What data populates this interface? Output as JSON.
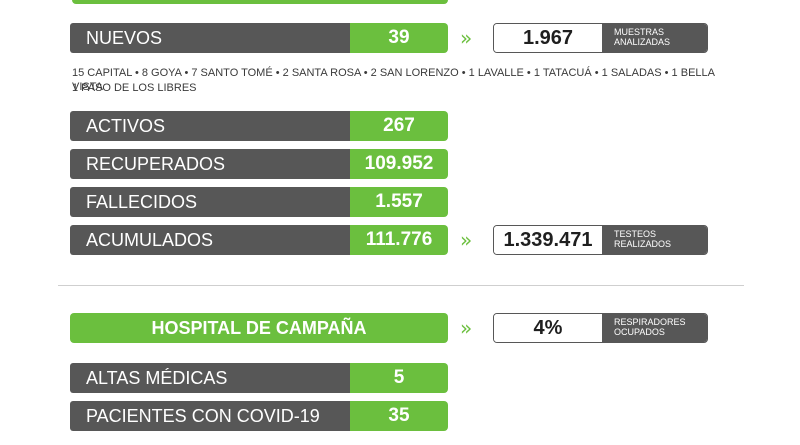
{
  "summary": {
    "nuevos": {
      "label": "NUEVOS",
      "value": "39"
    },
    "muestras": {
      "value": "1.967",
      "caption_line1": "MUESTRAS",
      "caption_line2": "ANALIZADAS"
    },
    "detail_line1": "15 CAPITAL • 8 GOYA • 7 SANTO TOMÉ • 2 SANTA ROSA • 2 SAN LORENZO • 1 LAVALLE • 1 TATACUÁ • 1 SALADAS • 1 BELLA VISTA",
    "detail_line2": "1 PASO DE LOS LIBRES",
    "activos": {
      "label": "ACTIVOS",
      "value": "267"
    },
    "recuperados": {
      "label": "RECUPERADOS",
      "value": "109.952"
    },
    "fallecidos": {
      "label": "FALLECIDOS",
      "value": "1.557"
    },
    "acumulados": {
      "label": "ACUMULADOS",
      "value": "111.776"
    },
    "testeos": {
      "value": "1.339.471",
      "caption_line1": "TESTEOS",
      "caption_line2": "REALIZADOS"
    }
  },
  "hospital": {
    "title": "HOSPITAL DE CAMPAÑA",
    "respiradores": {
      "value": "4%",
      "caption_line1": "RESPIRADORES",
      "caption_line2": "OCUPADOS"
    },
    "altas": {
      "label": "ALTAS MÉDICAS",
      "value": "5"
    },
    "pacientes": {
      "label": "PACIENTES CON COVID-19",
      "value": "35"
    }
  },
  "icons": {
    "chevron": "»"
  },
  "colors": {
    "green": "#6bbf3e",
    "gray": "#575757"
  }
}
